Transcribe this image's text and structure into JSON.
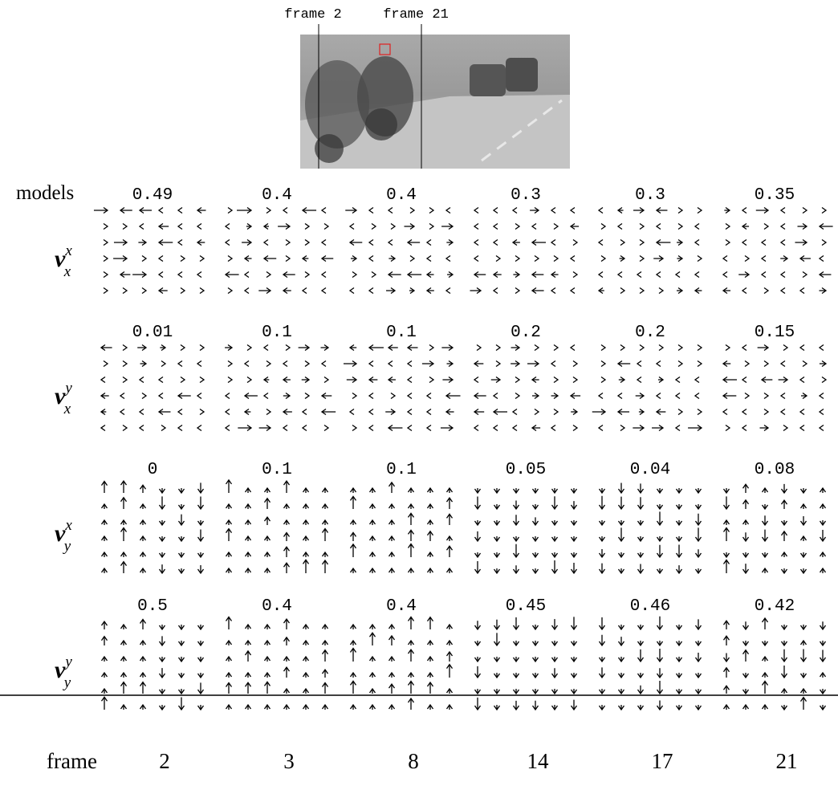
{
  "header": {
    "frame_labels": [
      "frame 2",
      "frame 21"
    ]
  },
  "models_label": "models",
  "rows": [
    {
      "symbol": "v",
      "sub": "x",
      "sup": "x",
      "values": [
        0.49,
        0.4,
        0.4,
        0.3,
        0.3,
        0.35
      ]
    },
    {
      "symbol": "v",
      "sub": "x",
      "sup": "y",
      "values": [
        0.01,
        0.1,
        0.1,
        0.2,
        0.2,
        0.15
      ]
    },
    {
      "symbol": "v",
      "sub": "y",
      "sup": "x",
      "values": [
        0,
        0.1,
        0.1,
        0.05,
        0.04,
        0.08
      ]
    },
    {
      "symbol": "v",
      "sub": "y",
      "sup": "y",
      "values": [
        0.5,
        0.4,
        0.4,
        0.45,
        0.46,
        0.42
      ]
    }
  ],
  "footer": {
    "label": "frame",
    "frames": [
      "2",
      "3",
      "8",
      "14",
      "17",
      "21"
    ]
  }
}
